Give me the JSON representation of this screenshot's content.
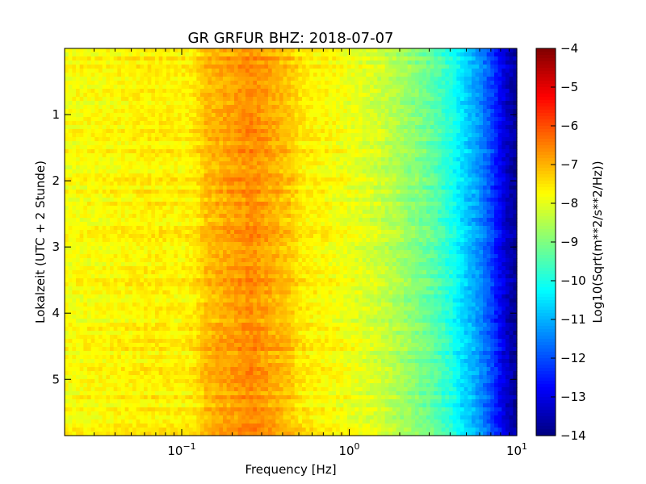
{
  "chart_data": {
    "type": "heatmap",
    "title": "GR GRFUR BHZ: 2018-07-07",
    "xlabel": "Frequency [Hz]",
    "ylabel": "Lokalzeit (UTC + 2 Stunde)",
    "xscale": "log",
    "xlim": [
      0.02,
      10
    ],
    "ylim": [
      0,
      5.85
    ],
    "y_inverted": true,
    "x_ticks": [
      {
        "value": 0.1,
        "base": "10",
        "exp": "-1"
      },
      {
        "value": 1,
        "base": "10",
        "exp": "0"
      },
      {
        "value": 10,
        "base": "10",
        "exp": "1"
      }
    ],
    "y_ticks": [
      {
        "value": 1,
        "label": "1"
      },
      {
        "value": 2,
        "label": "2"
      },
      {
        "value": 3,
        "label": "3"
      },
      {
        "value": 4,
        "label": "4"
      },
      {
        "value": 5,
        "label": "5"
      }
    ],
    "colorbar": {
      "label": "Log10(Sqrt(m**2/s**2/Hz))",
      "range": [
        -14,
        -4
      ],
      "colormap": "jet",
      "ticks": [
        {
          "value": -4,
          "label": "−4"
        },
        {
          "value": -5,
          "label": "−5"
        },
        {
          "value": -6,
          "label": "−6"
        },
        {
          "value": -7,
          "label": "−7"
        },
        {
          "value": -8,
          "label": "−8"
        },
        {
          "value": -9,
          "label": "−9"
        },
        {
          "value": -10,
          "label": "−10"
        },
        {
          "value": -11,
          "label": "−11"
        },
        {
          "value": -12,
          "label": "−12"
        },
        {
          "value": -13,
          "label": "−13"
        },
        {
          "value": -14,
          "label": "−14"
        }
      ]
    },
    "spectrum_profile": {
      "frequency_hz": [
        0.02,
        0.04,
        0.06,
        0.08,
        0.1,
        0.12,
        0.14,
        0.2,
        0.26,
        0.35,
        0.45,
        0.5,
        0.7,
        1.0,
        1.5,
        2.0,
        3.0,
        4.0,
        5.0,
        6.0,
        7.0,
        8.0,
        9.0,
        10.0
      ],
      "log10_amplitude": [
        -7.8,
        -7.7,
        -7.6,
        -7.6,
        -7.65,
        -7.5,
        -7.1,
        -6.8,
        -6.6,
        -6.9,
        -7.2,
        -7.5,
        -7.7,
        -7.9,
        -8.2,
        -8.6,
        -9.2,
        -9.9,
        -10.7,
        -11.3,
        -12.0,
        -12.8,
        -13.4,
        -13.8
      ]
    },
    "grid": false
  }
}
